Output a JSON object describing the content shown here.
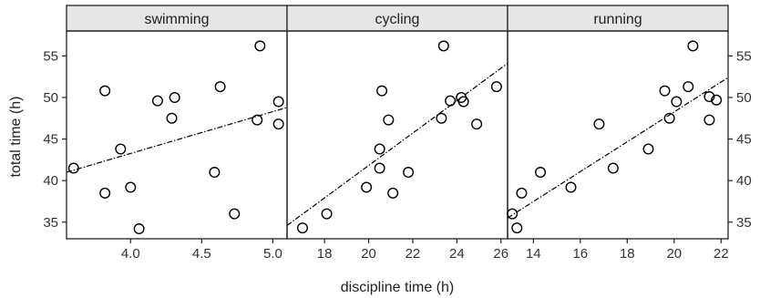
{
  "chart_data": {
    "type": "scatter",
    "xlabel": "discipline time (h)",
    "ylabel": "total time (h)",
    "ylim": [
      33,
      58
    ],
    "yticks": [
      35,
      40,
      45,
      50,
      55
    ],
    "point_marker": "open-circle",
    "trend_line": "dash-dot linear fit",
    "colors": {
      "strip_fill": "#e6e6e6",
      "border": "#222222",
      "points": "#000000",
      "fit_line": "#000000"
    },
    "panels": [
      {
        "title": "swimming",
        "xlim": [
          3.55,
          5.1
        ],
        "xticks": [
          "4.0",
          "4.5",
          "5.0"
        ],
        "fit": {
          "x": [
            3.55,
            5.1
          ],
          "y": [
            41.0,
            48.8
          ]
        },
        "points": [
          {
            "x": 3.6,
            "y": 41.5
          },
          {
            "x": 3.82,
            "y": 50.8
          },
          {
            "x": 3.82,
            "y": 38.5
          },
          {
            "x": 3.93,
            "y": 43.8
          },
          {
            "x": 4.0,
            "y": 39.2
          },
          {
            "x": 4.06,
            "y": 34.2
          },
          {
            "x": 4.19,
            "y": 49.6
          },
          {
            "x": 4.29,
            "y": 47.5
          },
          {
            "x": 4.31,
            "y": 50.0
          },
          {
            "x": 4.59,
            "y": 41.0
          },
          {
            "x": 4.63,
            "y": 51.3
          },
          {
            "x": 4.73,
            "y": 36.0
          },
          {
            "x": 4.89,
            "y": 47.3
          },
          {
            "x": 4.91,
            "y": 56.2
          },
          {
            "x": 5.04,
            "y": 49.5
          },
          {
            "x": 5.04,
            "y": 46.8
          }
        ]
      },
      {
        "title": "cycling",
        "xlim": [
          16.3,
          26.3
        ],
        "xticks": [
          "18",
          "20",
          "22",
          "24",
          "26"
        ],
        "fit": {
          "x": [
            16.3,
            26.3
          ],
          "y": [
            34.6,
            54.1
          ]
        },
        "points": [
          {
            "x": 17.0,
            "y": 34.3
          },
          {
            "x": 18.1,
            "y": 36.0
          },
          {
            "x": 19.9,
            "y": 39.2
          },
          {
            "x": 20.5,
            "y": 41.5
          },
          {
            "x": 20.5,
            "y": 43.8
          },
          {
            "x": 20.6,
            "y": 50.8
          },
          {
            "x": 20.9,
            "y": 47.3
          },
          {
            "x": 21.1,
            "y": 38.5
          },
          {
            "x": 21.8,
            "y": 41.0
          },
          {
            "x": 23.3,
            "y": 47.5
          },
          {
            "x": 23.4,
            "y": 56.2
          },
          {
            "x": 23.7,
            "y": 49.6
          },
          {
            "x": 24.2,
            "y": 50.0
          },
          {
            "x": 24.3,
            "y": 49.5
          },
          {
            "x": 24.9,
            "y": 46.8
          },
          {
            "x": 25.8,
            "y": 51.3
          }
        ]
      },
      {
        "title": "running",
        "xlim": [
          12.9,
          22.3
        ],
        "xticks": [
          "14",
          "16",
          "18",
          "20",
          "22"
        ],
        "fit": {
          "x": [
            12.9,
            22.3
          ],
          "y": [
            35.5,
            52.4
          ]
        },
        "points": [
          {
            "x": 13.1,
            "y": 36.0
          },
          {
            "x": 13.3,
            "y": 34.3
          },
          {
            "x": 13.5,
            "y": 38.5
          },
          {
            "x": 14.3,
            "y": 41.0
          },
          {
            "x": 15.6,
            "y": 39.2
          },
          {
            "x": 16.8,
            "y": 46.8
          },
          {
            "x": 17.4,
            "y": 41.5
          },
          {
            "x": 18.9,
            "y": 43.8
          },
          {
            "x": 19.6,
            "y": 50.8
          },
          {
            "x": 19.8,
            "y": 47.5
          },
          {
            "x": 20.1,
            "y": 49.5
          },
          {
            "x": 20.6,
            "y": 51.3
          },
          {
            "x": 20.8,
            "y": 56.2
          },
          {
            "x": 21.5,
            "y": 47.3
          },
          {
            "x": 21.5,
            "y": 50.1
          },
          {
            "x": 21.8,
            "y": 49.7
          }
        ]
      }
    ]
  }
}
